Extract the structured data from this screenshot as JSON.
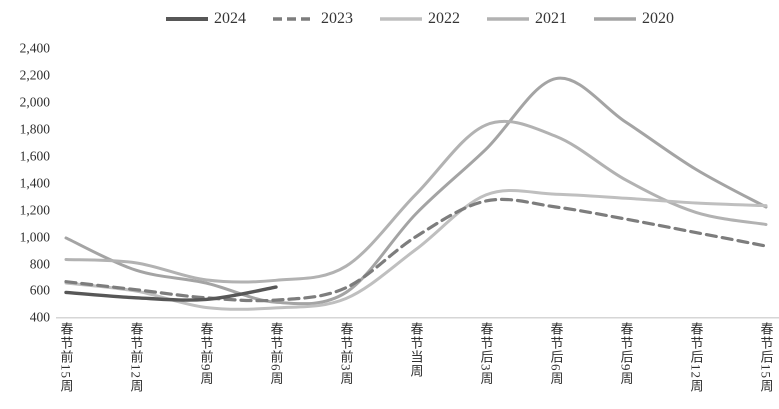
{
  "chart_data": {
    "type": "line",
    "title": "",
    "xlabel": "",
    "ylabel": "",
    "grid": false,
    "legend_position": "top",
    "ylim": [
      400,
      2400
    ],
    "y_tick_step": 200,
    "y_tick_labels": [
      "400",
      "600",
      "800",
      "1,000",
      "1,200",
      "1,400",
      "1,600",
      "1,800",
      "2,000",
      "2,200",
      "2,400"
    ],
    "categories": [
      "春节前15周",
      "春节前12周",
      "春节前9周",
      "春节前6周",
      "春节前3周",
      "春节当周",
      "春节后3周",
      "春节后6周",
      "春节后9周",
      "春节后12周",
      "春节后15周"
    ],
    "series": [
      {
        "name": "2024",
        "color": "#575757",
        "dash": "",
        "width": 3.4,
        "values": [
          585,
          545,
          533,
          625,
          null,
          null,
          null,
          null,
          null,
          null,
          null
        ]
      },
      {
        "name": "2023",
        "color": "#7d7d7d",
        "dash": "10,6",
        "width": 3.2,
        "values": [
          665,
          605,
          545,
          528,
          620,
          1000,
          1265,
          1220,
          1130,
          1030,
          930
        ]
      },
      {
        "name": "2022",
        "color": "#bfbfbf",
        "dash": "",
        "width": 3,
        "values": [
          655,
          595,
          473,
          470,
          540,
          905,
          1310,
          1315,
          1285,
          1250,
          1230
        ]
      },
      {
        "name": "2021",
        "color": "#b2b2b2",
        "dash": "",
        "width": 3,
        "values": [
          830,
          805,
          678,
          675,
          780,
          1315,
          1830,
          1745,
          1420,
          1180,
          1090
        ]
      },
      {
        "name": "2020",
        "color": "#a4a4a4",
        "dash": "",
        "width": 3,
        "values": [
          990,
          750,
          655,
          512,
          585,
          1170,
          1650,
          2175,
          1850,
          1500,
          1220
        ]
      }
    ],
    "axis_line_color": "#c8c8c8"
  }
}
